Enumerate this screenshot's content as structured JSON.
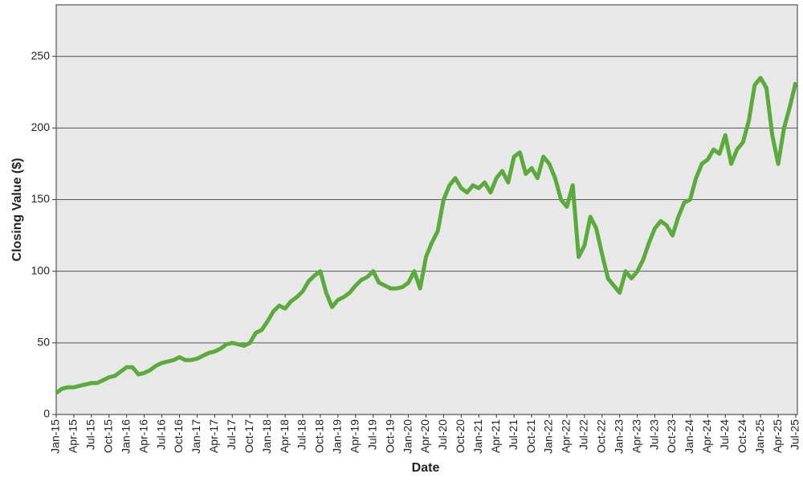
{
  "chart_data": {
    "type": "line",
    "x_label": "Date",
    "y_label": "Closing Value ($)",
    "categories": [
      "Jan-15",
      null,
      null,
      "Apr-15",
      null,
      null,
      "Jul-15",
      null,
      null,
      "Oct-15",
      null,
      null,
      "Jan-16",
      null,
      null,
      "Apr-16",
      null,
      null,
      "Jul-16",
      null,
      null,
      "Oct-16",
      null,
      null,
      "Jan-17",
      null,
      null,
      "Apr-17",
      null,
      null,
      "Jul-17",
      null,
      null,
      "Oct-17",
      null,
      null,
      "Jan-18",
      null,
      null,
      "Apr-18",
      null,
      null,
      "Jul-18",
      null,
      null,
      "Oct-18",
      null,
      null,
      "Jan-19",
      null,
      null,
      "Apr-19",
      null,
      null,
      "Jul-19",
      null,
      null,
      "Oct-19",
      null,
      null,
      "Jan-20",
      null,
      null,
      "Apr-20",
      null,
      null,
      "Jul-20",
      null,
      null,
      "Oct-20",
      null,
      null,
      "Jan-21",
      null,
      null,
      "Apr-21",
      null,
      null,
      "Jul-21",
      null,
      null,
      "Oct-21",
      null,
      null,
      "Jan-22",
      null,
      null,
      "Apr-22",
      null,
      null,
      "Jul-22",
      null,
      null,
      "Oct-22",
      null,
      null,
      "Jan-23",
      null,
      null,
      "Apr-23",
      null,
      null,
      "Jul-23",
      null,
      null,
      "Oct-23",
      null,
      null,
      "Jan-24",
      null,
      null,
      "Apr-24",
      null,
      null,
      "Jul-24",
      null,
      null,
      "Oct-24",
      null,
      null,
      "Jan-25",
      null,
      null,
      "Apr-25",
      null,
      null,
      "Jul-25"
    ],
    "values": [
      15,
      18,
      19,
      19,
      20,
      21,
      22,
      22,
      24,
      26,
      27,
      30,
      33,
      33,
      28,
      29,
      31,
      34,
      36,
      37,
      38,
      40,
      38,
      38,
      39,
      41,
      43,
      44,
      46,
      49,
      50,
      49,
      48,
      50,
      57,
      59,
      65,
      72,
      76,
      74,
      79,
      82,
      86,
      93,
      97,
      100,
      85,
      75,
      80,
      82,
      85,
      90,
      94,
      96,
      100,
      92,
      90,
      88,
      88,
      89,
      92,
      100,
      88,
      110,
      120,
      128,
      150,
      160,
      165,
      158,
      155,
      160,
      158,
      162,
      155,
      165,
      170,
      162,
      180,
      183,
      168,
      172,
      165,
      180,
      175,
      165,
      150,
      145,
      160,
      110,
      118,
      138,
      130,
      112,
      95,
      90,
      85,
      100,
      95,
      100,
      108,
      120,
      130,
      135,
      132,
      125,
      138,
      148,
      150,
      165,
      175,
      178,
      185,
      182,
      195,
      175,
      185,
      190,
      205,
      230,
      235,
      228,
      195,
      175,
      200,
      215,
      232
    ],
    "color": "#5aaa3c",
    "ylim": [
      0,
      286
    ],
    "yticks": [
      0,
      50,
      100,
      150,
      200,
      250
    ],
    "grid": true
  }
}
